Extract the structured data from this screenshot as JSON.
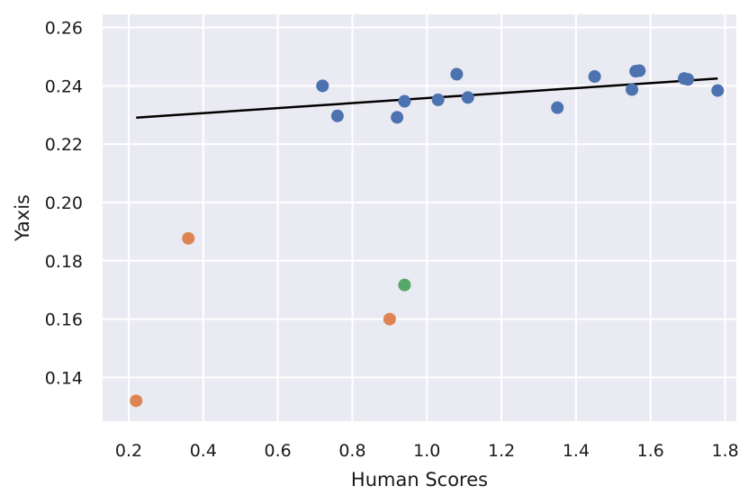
{
  "chart_data": {
    "type": "scatter",
    "title": "",
    "xlabel": "Human Scores",
    "ylabel": "Yaxis",
    "xlim": [
      0.13,
      1.83
    ],
    "ylim": [
      0.125,
      0.2645
    ],
    "xticks": [
      0.2,
      0.4,
      0.6,
      0.8,
      1.0,
      1.2,
      1.4,
      1.6,
      1.8
    ],
    "xtick_labels": [
      "0.2",
      "0.4",
      "0.6",
      "0.8",
      "1.0",
      "1.2",
      "1.4",
      "1.6",
      "1.8"
    ],
    "yticks": [
      0.14,
      0.16,
      0.18,
      0.2,
      0.22,
      0.24,
      0.26
    ],
    "ytick_labels": [
      "0.14",
      "0.16",
      "0.18",
      "0.20",
      "0.22",
      "0.24",
      "0.26"
    ],
    "grid": true,
    "background": "#eaeaf2",
    "series": [
      {
        "color": "#4c72b0",
        "points": [
          [
            0.72,
            0.24
          ],
          [
            0.76,
            0.2297
          ],
          [
            0.92,
            0.2292
          ],
          [
            0.94,
            0.2347
          ],
          [
            1.03,
            0.2352
          ],
          [
            1.08,
            0.244
          ],
          [
            1.11,
            0.236
          ],
          [
            1.35,
            0.2325
          ],
          [
            1.45,
            0.2432
          ],
          [
            1.55,
            0.2387
          ],
          [
            1.56,
            0.245
          ],
          [
            1.57,
            0.2452
          ],
          [
            1.69,
            0.2425
          ],
          [
            1.7,
            0.2422
          ],
          [
            1.78,
            0.2384
          ]
        ]
      },
      {
        "color": "#dd8452",
        "points": [
          [
            0.22,
            0.132
          ],
          [
            0.36,
            0.1877
          ],
          [
            0.9,
            0.16
          ]
        ]
      },
      {
        "color": "#55a868",
        "points": [
          [
            0.94,
            0.1717
          ]
        ]
      }
    ],
    "trendline": {
      "color": "#000000",
      "points": [
        [
          0.22,
          0.2291
        ],
        [
          1.78,
          0.2425
        ]
      ]
    }
  }
}
